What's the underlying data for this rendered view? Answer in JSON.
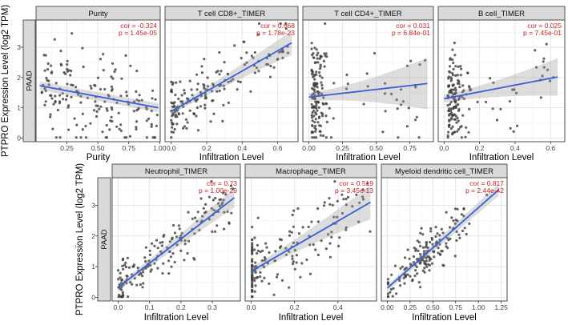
{
  "figure": {
    "y_axis_title": "PTPRO Expression Level (log2 TPM)",
    "facet_row_label": "PAAD",
    "y_tick_labels": [
      "0",
      "1",
      "2",
      "3"
    ],
    "y_tick_values": [
      0,
      1,
      2,
      3
    ],
    "ylim": [
      -0.12,
      3.9
    ],
    "colors": {
      "trend_line": "#3A5FD6",
      "annotation_text": "#CC2222",
      "strip_bg": "#D9D9D9",
      "strip_border": "#333333",
      "panel_border": "#4D4D4D",
      "point": "#3D3D3D",
      "ribbon": "#999999",
      "grid_major": "#E6E6E6",
      "grid_minor": "#F2F2F2"
    }
  },
  "chart_data": [
    {
      "type": "scatter",
      "row": 0,
      "title": "Purity",
      "xlabel": "Purity",
      "cor": -0.324,
      "p_value": "1.45e-05",
      "cor_label": "cor = -0.324",
      "p_label": "p = 1.45e-05",
      "x_tick_values": [
        0.25,
        0.5,
        0.75,
        1.0
      ],
      "x_tick_labels": [
        "0.25",
        "0.50",
        "0.75",
        "1.00"
      ],
      "xlim": [
        0.0,
        1.005
      ],
      "trend": {
        "x0": 0.03,
        "y0": 1.73,
        "x1": 0.99,
        "y1": 1.0
      },
      "ribbon": {
        "w0": 0.14,
        "w1": 0.15
      },
      "scatter": {
        "n": 170,
        "dist": "uniform",
        "xmax": 0.99,
        "noise": 0.82,
        "seed": 101
      }
    },
    {
      "type": "scatter",
      "row": 0,
      "title": "T cell CD8+_TIMER",
      "xlabel": "Infiltration Level",
      "cor": 0.668,
      "p_value": "1.78e-23",
      "cor_label": "cor = 0.668",
      "p_label": "p = 1.78e-23",
      "x_tick_values": [
        0.0,
        0.2,
        0.4,
        0.6
      ],
      "x_tick_labels": [
        "0.0",
        "0.2",
        "0.4",
        "0.6"
      ],
      "xlim": [
        -0.035,
        0.715
      ],
      "trend": {
        "x0": 0.0,
        "y0": 0.88,
        "x1": 0.68,
        "y1": 3.15
      },
      "ribbon": {
        "w0": 0.1,
        "w1": 0.4
      },
      "scatter": {
        "n": 170,
        "dist": "rskew",
        "xmax": 0.66,
        "pow": 2.2,
        "noise": 0.5,
        "seed": 202
      }
    },
    {
      "type": "scatter",
      "row": 0,
      "title": "T cell CD4+_TIMER",
      "xlabel": "Infiltration Level",
      "cor": 0.031,
      "p_value": "6.84e-01",
      "cor_label": "cor = 0.031",
      "p_label": "p = 6.84e-01",
      "x_tick_values": [
        0.0,
        0.25,
        0.5,
        0.75
      ],
      "x_tick_labels": [
        "0.00",
        "0.25",
        "0.50",
        "0.75"
      ],
      "xlim": [
        -0.045,
        0.925
      ],
      "trend": {
        "x0": 0.0,
        "y0": 1.35,
        "x1": 0.88,
        "y1": 1.8
      },
      "ribbon": {
        "w0": 0.14,
        "w1": 0.85
      },
      "scatter": {
        "n": 165,
        "dist": "cluster",
        "xmax": 0.88,
        "noise": 0.8,
        "seed": 303
      }
    },
    {
      "type": "scatter",
      "row": 0,
      "title": "B cell_TIMER",
      "xlabel": "Infiltration Level",
      "cor": 0.025,
      "p_value": "7.45e-01",
      "cor_label": "cor = 0.025",
      "p_label": "p = 7.45e-01",
      "x_tick_values": [
        0.0,
        0.2,
        0.4,
        0.6
      ],
      "x_tick_labels": [
        "0.0",
        "0.2",
        "0.4",
        "0.6"
      ],
      "xlim": [
        -0.033,
        0.68
      ],
      "trend": {
        "x0": 0.0,
        "y0": 1.3,
        "x1": 0.64,
        "y1": 2.02
      },
      "ribbon": {
        "w0": 0.13,
        "w1": 0.62
      },
      "scatter": {
        "n": 165,
        "dist": "cluster",
        "xmax": 0.63,
        "noise": 0.78,
        "seed": 404
      }
    },
    {
      "type": "scatter",
      "row": 1,
      "title": "Neutrophil_TIMER",
      "xlabel": "Infiltration Level",
      "cor": 0.73,
      "p_value": "1.00e-29",
      "cor_label": "cor = 0.73",
      "p_label": "p = 1.00e-29",
      "x_tick_values": [
        0.0,
        0.1,
        0.2,
        0.3
      ],
      "x_tick_labels": [
        "0.0",
        "0.1",
        "0.2",
        "0.3"
      ],
      "xlim": [
        -0.019,
        0.389
      ],
      "trend": {
        "x0": 0.0,
        "y0": 0.32,
        "x1": 0.37,
        "y1": 3.25
      },
      "ribbon": {
        "w0": 0.1,
        "w1": 0.32
      },
      "scatter": {
        "n": 170,
        "dist": "rskew",
        "xmax": 0.37,
        "pow": 1.7,
        "noise": 0.42,
        "seed": 505
      }
    },
    {
      "type": "scatter",
      "row": 1,
      "title": "Macrophage_TIMER",
      "xlabel": "Infiltration Level",
      "cor": 0.519,
      "p_value": "3.45e-13",
      "cor_label": "cor = 0.519",
      "p_label": "p = 3.45e-13",
      "x_tick_values": [
        0.0,
        0.2,
        0.4
      ],
      "x_tick_labels": [
        "0.0",
        "0.2",
        "0.4"
      ],
      "xlim": [
        -0.028,
        0.578
      ],
      "trend": {
        "x0": 0.0,
        "y0": 0.85,
        "x1": 0.55,
        "y1": 3.1
      },
      "ribbon": {
        "w0": 0.13,
        "w1": 0.55
      },
      "scatter": {
        "n": 170,
        "dist": "zerocol",
        "xmax": 0.55,
        "noise": 0.62,
        "seed": 606
      }
    },
    {
      "type": "scatter",
      "row": 1,
      "title": "Myeloid dendritic cell_TIMER",
      "xlabel": "Infiltration Level",
      "cor": 0.817,
      "p_value": "2.44e-42",
      "cor_label": "cor = 0.817",
      "p_label": "p = 2.44e-42",
      "x_tick_values": [
        0.0,
        0.25,
        0.5,
        0.75,
        1.0,
        1.25
      ],
      "x_tick_labels": [
        "0.00",
        "0.25",
        "0.50",
        "0.75",
        "1.00",
        "1.25"
      ],
      "xlim": [
        -0.065,
        1.315
      ],
      "trend": {
        "x0": 0.0,
        "y0": 0.3,
        "x1": 1.22,
        "y1": 3.5
      },
      "ribbon": {
        "w0": 0.1,
        "w1": 0.2
      },
      "scatter": {
        "n": 170,
        "dist": "normal",
        "xmax": 1.23,
        "mu": 0.45,
        "sd": 0.24,
        "noise": 0.33,
        "seed": 707
      }
    }
  ]
}
